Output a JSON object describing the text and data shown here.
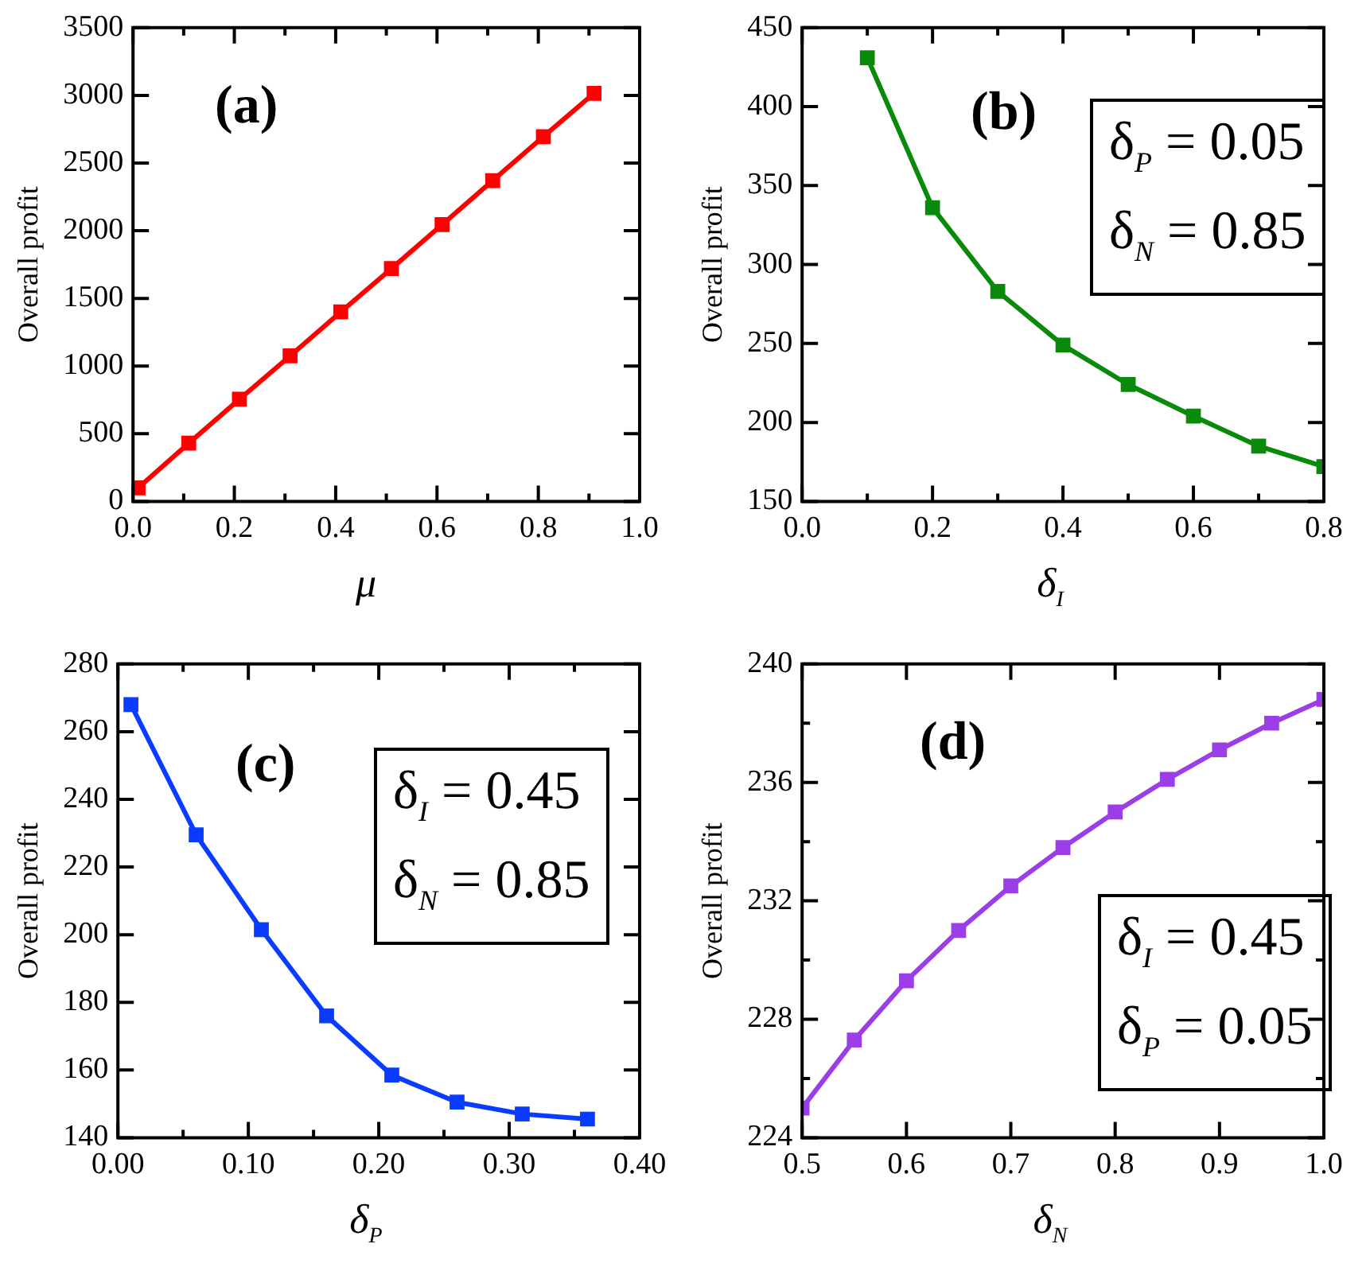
{
  "chart_data": [
    {
      "type": "line",
      "annotations": [
        "(a)"
      ],
      "xlabel": "μ",
      "ylabel": "Overall profit",
      "marker": "square",
      "line_style": "solid",
      "x": [
        0.01,
        0.11,
        0.21,
        0.31,
        0.41,
        0.51,
        0.61,
        0.71,
        0.81,
        0.91
      ],
      "series": [
        {
          "color": "#ff0000",
          "values": [
            100,
            430,
            755,
            1075,
            1400,
            1720,
            2045,
            2370,
            2695,
            3015
          ]
        }
      ],
      "xlim": [
        0,
        1
      ],
      "xticks": [
        {
          "value": 0,
          "label": "0.0"
        },
        {
          "value": 0.1,
          "label": null
        },
        0.2,
        {
          "value": 0.3,
          "label": null
        },
        0.4,
        {
          "value": 0.5,
          "label": null
        },
        0.6,
        {
          "value": 0.7,
          "label": null
        },
        0.8,
        {
          "value": 0.9,
          "label": null
        },
        {
          "value": 1,
          "label": "1.0"
        }
      ],
      "ylim": [
        0,
        3500
      ],
      "yticks": [
        0,
        500,
        1000,
        1500,
        2000,
        2500,
        3000,
        3500
      ]
    },
    {
      "type": "line",
      "annotations": [
        "(b)",
        "δ$_{P}$ = 0.05",
        "δ$_{N}$ = 0.85"
      ],
      "xlabel": "δ$_{I}$",
      "ylabel": "Overall profit",
      "marker": "square",
      "line_style": "solid",
      "x": [
        0.1,
        0.2,
        0.3,
        0.4,
        0.5,
        0.6,
        0.7,
        0.8
      ],
      "series": [
        {
          "color": "#0a8a0a",
          "values": [
            431,
            336,
            283,
            249,
            224,
            204,
            185,
            172
          ]
        }
      ],
      "xlim": [
        0,
        0.8
      ],
      "xticks": [
        {
          "value": 0,
          "label": "0.0"
        },
        {
          "value": 0.1,
          "label": null
        },
        0.2,
        {
          "value": 0.3,
          "label": null
        },
        0.4,
        {
          "value": 0.5,
          "label": null
        },
        0.6,
        {
          "value": 0.7,
          "label": null
        },
        0.8
      ],
      "ylim": [
        150,
        450
      ],
      "yticks": [
        150,
        200,
        250,
        300,
        350,
        400,
        450
      ]
    },
    {
      "type": "line",
      "annotations": [
        "(c)",
        "δ$_{I}$ = 0.45",
        "δ$_{N}$ = 0.85"
      ],
      "xlabel": "δ$_{P}$",
      "ylabel": "Overall profit",
      "marker": "square",
      "line_style": "solid",
      "x": [
        0.01,
        0.06,
        0.11,
        0.16,
        0.21,
        0.26,
        0.31,
        0.36
      ],
      "series": [
        {
          "color": "#0a3cff",
          "values": [
            268,
            229.5,
            201.5,
            176,
            158.5,
            150.5,
            147,
            145.5
          ]
        }
      ],
      "xlim": [
        0,
        0.4
      ],
      "xticks": [
        {
          "value": 0,
          "label": "0.00"
        },
        {
          "value": 0.05,
          "label": null
        },
        {
          "value": 0.1,
          "label": "0.10"
        },
        {
          "value": 0.15,
          "label": null
        },
        {
          "value": 0.2,
          "label": "0.20"
        },
        {
          "value": 0.25,
          "label": null
        },
        {
          "value": 0.3,
          "label": "0.30"
        },
        {
          "value": 0.35,
          "label": null
        },
        {
          "value": 0.4,
          "label": "0.40"
        }
      ],
      "ylim": [
        140,
        280
      ],
      "yticks": [
        140,
        160,
        180,
        200,
        220,
        240,
        260,
        280
      ]
    },
    {
      "type": "line",
      "annotations": [
        "(d)",
        "δ$_{I}$ = 0.45",
        "δ$_{P}$ = 0.05"
      ],
      "xlabel": "δ$_{N}$",
      "ylabel": "Overall profit",
      "marker": "square",
      "line_style": "solid",
      "x": [
        0.5,
        0.55,
        0.6,
        0.65,
        0.7,
        0.75,
        0.8,
        0.85,
        0.9,
        0.95,
        1.0
      ],
      "series": [
        {
          "color": "#9b3ee8",
          "values": [
            225,
            227.3,
            229.3,
            231,
            232.5,
            233.8,
            235,
            236.1,
            237.1,
            238,
            238.8
          ]
        }
      ],
      "xlim": [
        0.5,
        1
      ],
      "xticks": [
        0.5,
        0.6,
        0.7,
        0.8,
        0.9,
        {
          "value": 1,
          "label": "1.0"
        }
      ],
      "ylim": [
        224,
        240
      ],
      "yticks": [
        224,
        {
          "value": 226,
          "label": null
        },
        228,
        {
          "value": 230,
          "label": null
        },
        232,
        {
          "value": 234,
          "label": null
        },
        236,
        {
          "value": 238,
          "label": null
        },
        240
      ]
    }
  ]
}
